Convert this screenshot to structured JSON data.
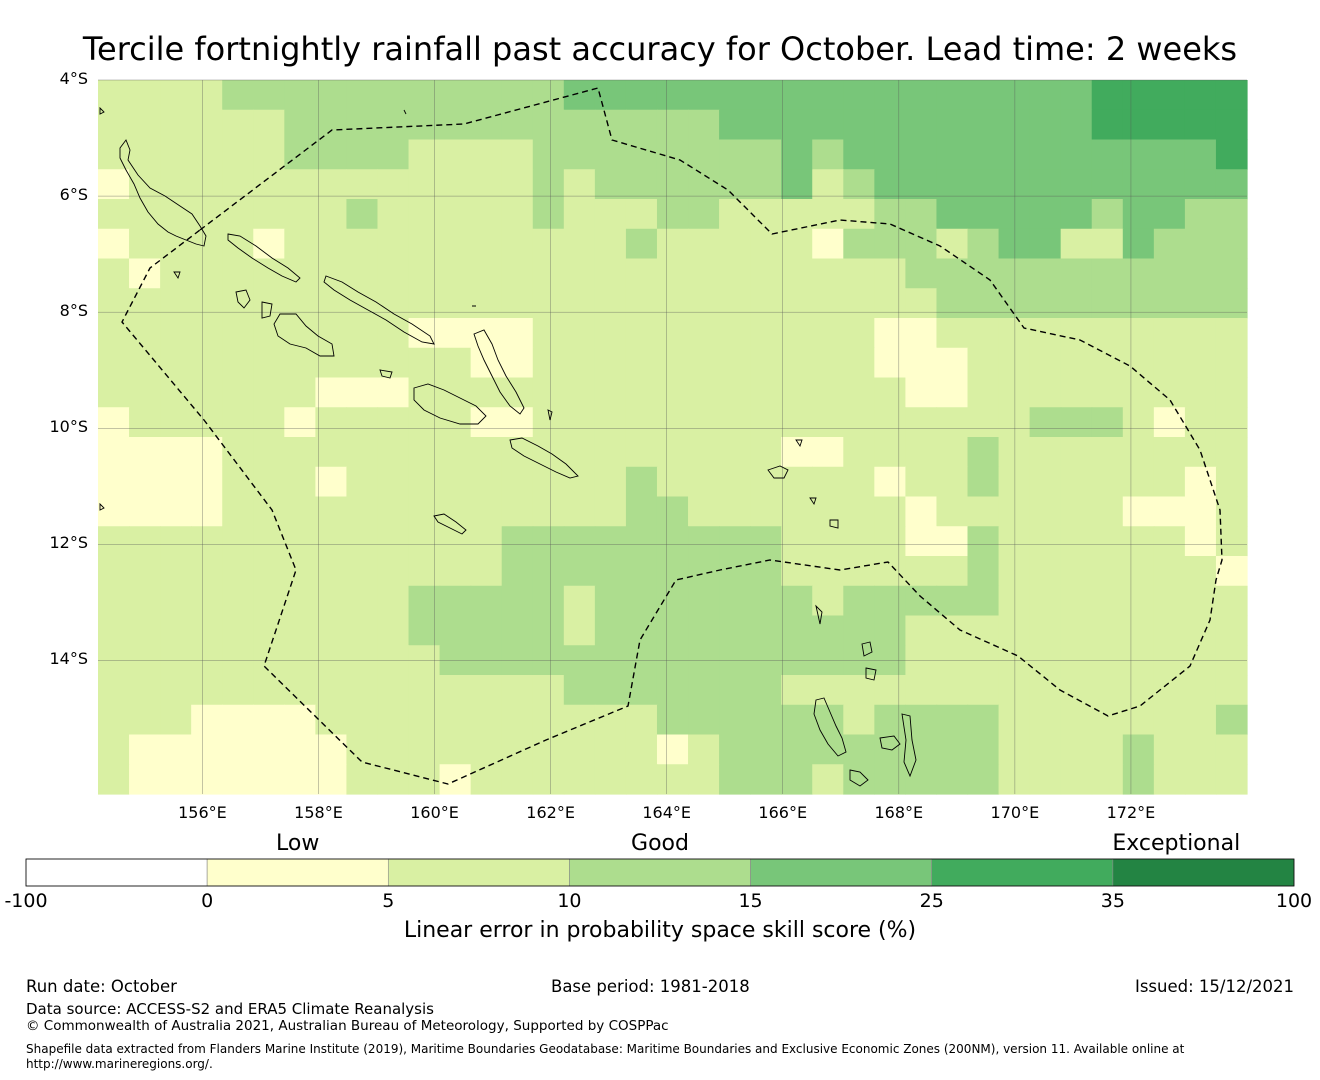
{
  "title": "Tercile fortnightly rainfall past accuracy for October. Lead time: 2 weeks",
  "map": {
    "lon_range": [
      154.2,
      174.0
    ],
    "lat_range": [
      -4.0,
      -16.3
    ],
    "lat_ticks": [
      {
        "value": -4,
        "label": "4°S"
      },
      {
        "value": -6,
        "label": "6°S"
      },
      {
        "value": -8,
        "label": "8°S"
      },
      {
        "value": -10,
        "label": "10°S"
      },
      {
        "value": -12,
        "label": "12°S"
      },
      {
        "value": -14,
        "label": "14°S"
      }
    ],
    "lon_ticks": [
      {
        "value": 156,
        "label": "156°E"
      },
      {
        "value": 158,
        "label": "158°E"
      },
      {
        "value": 160,
        "label": "160°E"
      },
      {
        "value": 162,
        "label": "162°E"
      },
      {
        "value": 164,
        "label": "164°E"
      },
      {
        "value": 166,
        "label": "166°E"
      },
      {
        "value": 168,
        "label": "168°E"
      },
      {
        "value": 170,
        "label": "170°E"
      },
      {
        "value": 172,
        "label": "172°E"
      }
    ],
    "grid_rows": [
      "1111222222222223333333333333333344444",
      "1111112222222222222233333333333344444",
      "1111112222111122222222323333333333334",
      "0111111111111121222222312333333333333",
      "1111111121111121112211111223333323322",
      "0111101111111111121111102221233113222",
      "1011111111111111111111111122222222222",
      "1111111111111111111111111112222222222",
      "1111111111000011111111111001111111111",
      "1111111111110011111111111000111111111",
      "1111111000111111111111111100111111111",
      "0111110111110011111111111111112221011",
      "0000111111111111111111001111211111111",
      "0000111011111111121111111011211111101",
      "0000111111111111122111111101111110001",
      "1111111111111222222222111100211111101",
      "1111111111111222222222111111211111110",
      "1111111111222221222222212222211111111",
      "1111111111222221222222222211111111111",
      "1111111111122222222222222211111111111",
      "1111111111111112222222111111111111111",
      "1110000111111111112222221222211111112",
      "1000000011111111110122222222211112111",
      "1000000011101111111122212222211112111"
    ],
    "island_labels": []
  },
  "colorbar": {
    "categories": [
      {
        "label": "Low",
        "value": 2.5
      },
      {
        "label": "Good",
        "value": 12.5
      },
      {
        "label": "Exceptional",
        "value": 67.5
      }
    ],
    "bins": [
      {
        "from": -100,
        "to": 0,
        "color": "#ffffff"
      },
      {
        "from": 0,
        "to": 5,
        "color": "#ffffcc"
      },
      {
        "from": 5,
        "to": 10,
        "color": "#d9f0a3"
      },
      {
        "from": 10,
        "to": 15,
        "color": "#addd8e"
      },
      {
        "from": 15,
        "to": 25,
        "color": "#78c679"
      },
      {
        "from": 25,
        "to": 35,
        "color": "#41ab5d"
      },
      {
        "from": 35,
        "to": 100,
        "color": "#238443"
      }
    ],
    "ticks": [
      "-100",
      "0",
      "5",
      "10",
      "15",
      "25",
      "35",
      "100"
    ],
    "axis_label": "Linear error in probability space skill score (%)"
  },
  "footer": {
    "run_date": "Run date: October",
    "base_period": "Base period: 1981-2018",
    "issued": "Issued: 15/12/2021",
    "data_source": "Data source: ACCESS-S2 and ERA5 Climate Reanalysis",
    "copyright": "© Commonwealth of Australia 2021, Australian Bureau of Meteorology, Supported by COSPPac",
    "shapefile": "Shapefile data extracted from Flanders Marine Institute (2019), Maritime Boundaries Geodatabase: Maritime Boundaries and Exclusive Economic Zones (200NM), version 11. Available online at http://www.marineregions.org/."
  },
  "colors": {
    "grid_line": "#555555",
    "coastline": "#000000",
    "eez_boundary": "#000000"
  }
}
